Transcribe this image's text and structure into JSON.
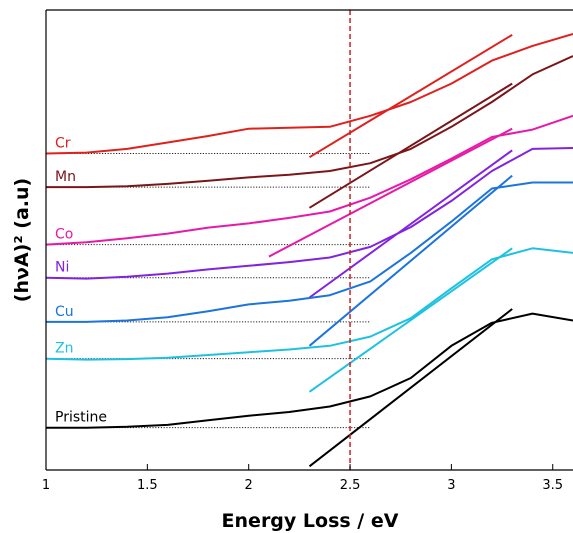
{
  "chart_data": {
    "type": "line",
    "xlabel": "Energy Loss / eV",
    "ylabel": "(hνA)² (a.u)",
    "xlim": [
      1,
      3.6
    ],
    "ylim": [
      0,
      10
    ],
    "xticks": [
      1,
      1.5,
      2,
      2.5,
      3,
      3.5
    ],
    "xtick_labels": [
      "1",
      "1.5",
      "2",
      "2.5",
      "3",
      "3.5"
    ],
    "y_tick_labels_shown": false,
    "grid": false,
    "legend": "none",
    "reference_line": {
      "x": 2.5,
      "color": "#cc2222",
      "style": "dashed"
    },
    "series": [
      {
        "name": "Cr",
        "color": "#e0201d",
        "x": [
          1,
          1.2,
          1.4,
          1.6,
          1.8,
          2.0,
          2.2,
          2.4,
          2.6,
          2.8,
          3.0,
          3.2,
          3.4,
          3.6
        ],
        "y": [
          6.88,
          6.9,
          6.98,
          7.12,
          7.26,
          7.42,
          7.44,
          7.46,
          7.7,
          8.0,
          8.4,
          8.9,
          9.22,
          9.48
        ],
        "baseline_y": 6.88,
        "baseline_x": [
          1,
          2.6
        ],
        "tangent": {
          "x": [
            2.3,
            3.3
          ],
          "y": [
            6.8,
            9.46
          ]
        }
      },
      {
        "name": "Mn",
        "color": "#7a1519",
        "x": [
          1,
          1.2,
          1.4,
          1.6,
          1.8,
          2.0,
          2.2,
          2.4,
          2.6,
          2.8,
          3.0,
          3.2,
          3.4,
          3.6
        ],
        "y": [
          6.15,
          6.15,
          6.17,
          6.22,
          6.29,
          6.36,
          6.42,
          6.5,
          6.67,
          6.98,
          7.46,
          8.0,
          8.6,
          9.0
        ],
        "baseline_y": 6.15,
        "baseline_x": [
          1,
          2.6
        ],
        "tangent": {
          "x": [
            2.3,
            3.3
          ],
          "y": [
            5.7,
            8.4
          ]
        }
      },
      {
        "name": "Co",
        "color": "#e61aa7",
        "x": [
          1,
          1.2,
          1.4,
          1.6,
          1.8,
          2.0,
          2.2,
          2.4,
          2.6,
          2.8,
          3.0,
          3.2,
          3.4,
          3.6
        ],
        "y": [
          4.9,
          4.95,
          5.04,
          5.14,
          5.27,
          5.36,
          5.48,
          5.62,
          5.92,
          6.32,
          6.77,
          7.24,
          7.4,
          7.7
        ],
        "baseline_y": 4.9,
        "baseline_x": [
          1,
          2.6
        ],
        "tangent": {
          "x": [
            2.1,
            3.3
          ],
          "y": [
            4.64,
            7.42
          ]
        }
      },
      {
        "name": "Ni",
        "color": "#8223e0",
        "x": [
          1,
          1.2,
          1.4,
          1.6,
          1.8,
          2.0,
          2.2,
          2.4,
          2.6,
          2.8,
          3.0,
          3.2,
          3.4,
          3.6
        ],
        "y": [
          4.18,
          4.16,
          4.2,
          4.27,
          4.36,
          4.44,
          4.52,
          4.62,
          4.85,
          5.28,
          5.85,
          6.5,
          6.98,
          7.0
        ],
        "baseline_y": 4.18,
        "baseline_x": [
          1,
          2.6
        ],
        "tangent": {
          "x": [
            2.3,
            3.3
          ],
          "y": [
            3.75,
            6.95
          ]
        }
      },
      {
        "name": "Cu",
        "color": "#1c74dc",
        "x": [
          1,
          1.2,
          1.4,
          1.6,
          1.8,
          2.0,
          2.2,
          2.4,
          2.6,
          2.8,
          3.0,
          3.2,
          3.4,
          3.6
        ],
        "y": [
          3.22,
          3.22,
          3.25,
          3.32,
          3.45,
          3.6,
          3.68,
          3.8,
          4.1,
          4.72,
          5.4,
          6.12,
          6.25,
          6.25
        ],
        "baseline_y": 3.22,
        "baseline_x": [
          1,
          2.6
        ],
        "tangent": {
          "x": [
            2.3,
            3.3
          ],
          "y": [
            2.7,
            6.4
          ]
        }
      },
      {
        "name": "Zn",
        "color": "#1fc1e0",
        "x": [
          1,
          1.2,
          1.4,
          1.6,
          1.8,
          2.0,
          2.2,
          2.4,
          2.6,
          2.8,
          3.0,
          3.2,
          3.4,
          3.6
        ],
        "y": [
          2.42,
          2.4,
          2.41,
          2.44,
          2.5,
          2.56,
          2.62,
          2.7,
          2.9,
          3.3,
          3.95,
          4.58,
          4.82,
          4.72
        ],
        "baseline_y": 2.42,
        "baseline_x": [
          1,
          2.6
        ],
        "tangent": {
          "x": [
            2.3,
            3.3
          ],
          "y": [
            1.7,
            4.82
          ]
        }
      },
      {
        "name": "Pristine",
        "color": "#000000",
        "x": [
          1,
          1.2,
          1.4,
          1.6,
          1.8,
          2.0,
          2.2,
          2.4,
          2.6,
          2.8,
          3.0,
          3.2,
          3.4,
          3.6
        ],
        "y": [
          0.92,
          0.92,
          0.94,
          0.98,
          1.08,
          1.18,
          1.26,
          1.38,
          1.6,
          2.0,
          2.7,
          3.2,
          3.4,
          3.25
        ],
        "baseline_y": 0.92,
        "baseline_x": [
          1,
          2.6
        ],
        "tangent": {
          "x": [
            2.3,
            3.3
          ],
          "y": [
            0.08,
            3.5
          ]
        }
      }
    ]
  }
}
